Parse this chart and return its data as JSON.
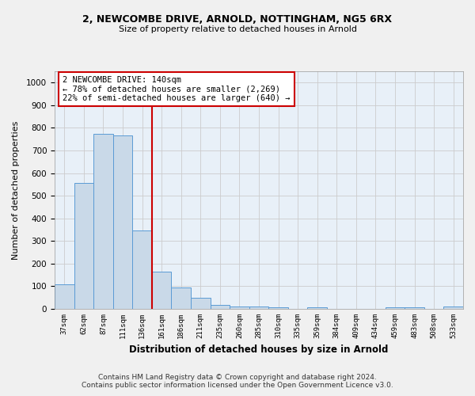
{
  "title1": "2, NEWCOMBE DRIVE, ARNOLD, NOTTINGHAM, NG5 6RX",
  "title2": "Size of property relative to detached houses in Arnold",
  "xlabel": "Distribution of detached houses by size in Arnold",
  "ylabel": "Number of detached properties",
  "bar_labels": [
    "37sqm",
    "62sqm",
    "87sqm",
    "111sqm",
    "136sqm",
    "161sqm",
    "186sqm",
    "211sqm",
    "235sqm",
    "260sqm",
    "285sqm",
    "310sqm",
    "335sqm",
    "359sqm",
    "384sqm",
    "409sqm",
    "434sqm",
    "459sqm",
    "483sqm",
    "508sqm",
    "533sqm"
  ],
  "bar_values": [
    110,
    555,
    775,
    768,
    345,
    163,
    95,
    50,
    18,
    12,
    10,
    8,
    0,
    8,
    0,
    0,
    0,
    8,
    8,
    0,
    10
  ],
  "bar_color": "#c9d9e8",
  "bar_edge_color": "#5b9bd5",
  "vline_x_index": 4,
  "vline_color": "#cc0000",
  "annotation_box_text": "2 NEWCOMBE DRIVE: 140sqm\n← 78% of detached houses are smaller (2,269)\n22% of semi-detached houses are larger (640) →",
  "annotation_box_color": "#cc0000",
  "ylim": [
    0,
    1050
  ],
  "yticks": [
    0,
    100,
    200,
    300,
    400,
    500,
    600,
    700,
    800,
    900,
    1000
  ],
  "grid_color": "#cccccc",
  "bg_color": "#e8f0f8",
  "fig_bg_color": "#f0f0f0",
  "footer1": "Contains HM Land Registry data © Crown copyright and database right 2024.",
  "footer2": "Contains public sector information licensed under the Open Government Licence v3.0."
}
